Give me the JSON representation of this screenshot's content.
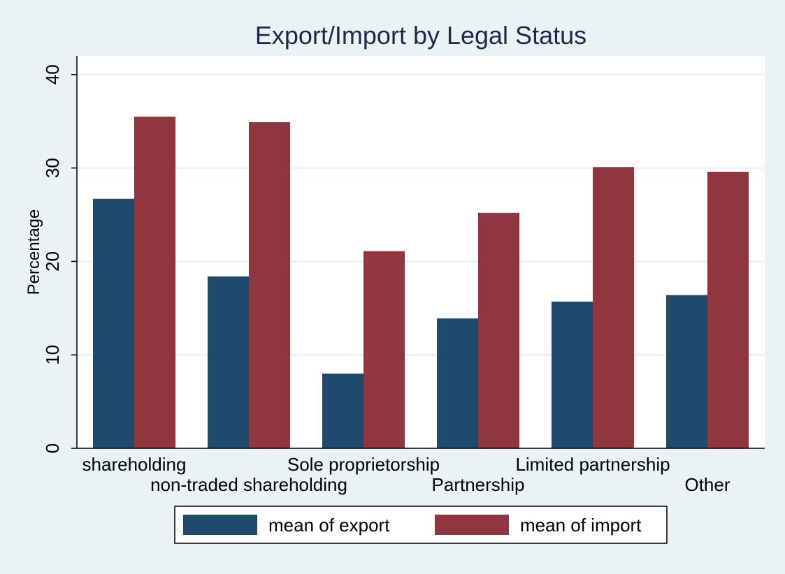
{
  "chart_data": {
    "type": "bar",
    "title": "Export/Import by Legal Status",
    "xlabel": "",
    "ylabel": "Percentage",
    "ylim": [
      0,
      42
    ],
    "yticks": [
      0,
      10,
      20,
      30,
      40
    ],
    "grid": true,
    "legend_position": "bottom",
    "categories": [
      "shareholding",
      "non-traded shareholding",
      "Sole proprietorship",
      "Partnership",
      "Limited partnership",
      "Other"
    ],
    "series": [
      {
        "name": "mean of export",
        "color": "#1f4a6e",
        "values": [
          26.7,
          18.4,
          8.0,
          13.9,
          15.7,
          16.4
        ]
      },
      {
        "name": "mean of import",
        "color": "#8f363e",
        "values": [
          35.5,
          34.9,
          21.1,
          25.2,
          30.1,
          29.6
        ]
      }
    ]
  }
}
